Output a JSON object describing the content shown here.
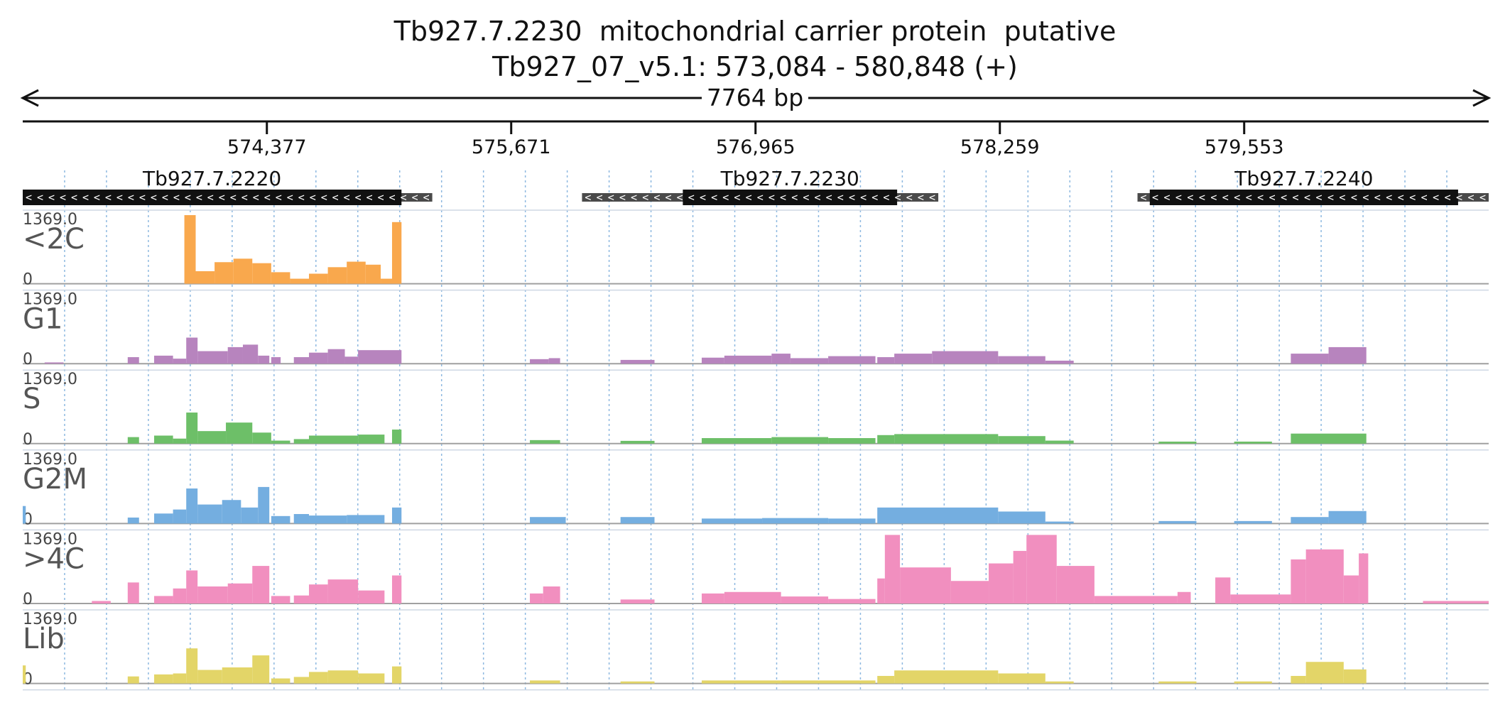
{
  "title": "Tb927.7.2230  mitochondrial carrier protein  putative",
  "subtitle": "Tb927_07_v5.1: 573,084 - 580,848 (+)",
  "span_label": "7764 bp",
  "chart_data": {
    "type": "area",
    "x_range": [
      573084,
      580848
    ],
    "ticks": [
      {
        "pos": 574377,
        "label": "574,377"
      },
      {
        "pos": 575671,
        "label": "575,671"
      },
      {
        "pos": 576965,
        "label": "576,965"
      },
      {
        "pos": 578259,
        "label": "578,259"
      },
      {
        "pos": 579553,
        "label": "579,553"
      }
    ],
    "genes": [
      {
        "name": "Tb927.7.2220",
        "utr_start": 573084,
        "cds_start": 573084,
        "cds_end": 575090,
        "utr_end": 575253,
        "strand": "-"
      },
      {
        "name": "Tb927.7.2230",
        "utr_start": 576046,
        "cds_start": 576580,
        "cds_end": 577715,
        "utr_end": 577933,
        "strand": "-"
      },
      {
        "name": "Tb927.7.2240",
        "utr_start": 578988,
        "cds_start": 579053,
        "cds_end": 580686,
        "utr_end": 580848,
        "strand": "-"
      }
    ],
    "ylim": [
      0,
      1369.0
    ],
    "ymax_label": "1369.0",
    "ymin_label": "0",
    "series": [
      {
        "name": "<2C",
        "color": "#f9a84d",
        "regions": [
          {
            "start": 573940,
            "end": 574000,
            "v": 1369
          },
          {
            "start": 574000,
            "end": 574100,
            "v": 250
          },
          {
            "start": 574100,
            "end": 574200,
            "v": 430
          },
          {
            "start": 574200,
            "end": 574300,
            "v": 500
          },
          {
            "start": 574300,
            "end": 574400,
            "v": 410
          },
          {
            "start": 574400,
            "end": 574500,
            "v": 230
          },
          {
            "start": 574500,
            "end": 574600,
            "v": 100
          },
          {
            "start": 574600,
            "end": 574700,
            "v": 200
          },
          {
            "start": 574700,
            "end": 574800,
            "v": 330
          },
          {
            "start": 574800,
            "end": 574900,
            "v": 440
          },
          {
            "start": 574900,
            "end": 574980,
            "v": 380
          },
          {
            "start": 574980,
            "end": 575040,
            "v": 100
          },
          {
            "start": 575040,
            "end": 575090,
            "v": 1230
          }
        ]
      },
      {
        "name": "G1",
        "color": "#b784be",
        "regions": [
          {
            "start": 573200,
            "end": 573300,
            "v": 25
          },
          {
            "start": 573640,
            "end": 573700,
            "v": 130
          },
          {
            "start": 573780,
            "end": 573880,
            "v": 160
          },
          {
            "start": 573880,
            "end": 573950,
            "v": 100
          },
          {
            "start": 573950,
            "end": 574010,
            "v": 520
          },
          {
            "start": 574010,
            "end": 574170,
            "v": 250
          },
          {
            "start": 574170,
            "end": 574250,
            "v": 330
          },
          {
            "start": 574250,
            "end": 574330,
            "v": 380
          },
          {
            "start": 574330,
            "end": 574390,
            "v": 160
          },
          {
            "start": 574400,
            "end": 574450,
            "v": 130
          },
          {
            "start": 574520,
            "end": 574600,
            "v": 130
          },
          {
            "start": 574600,
            "end": 574700,
            "v": 220
          },
          {
            "start": 574700,
            "end": 574790,
            "v": 290
          },
          {
            "start": 574790,
            "end": 574860,
            "v": 140
          },
          {
            "start": 574860,
            "end": 575090,
            "v": 270
          },
          {
            "start": 575770,
            "end": 575870,
            "v": 90
          },
          {
            "start": 575870,
            "end": 575930,
            "v": 110
          },
          {
            "start": 576250,
            "end": 576430,
            "v": 75
          },
          {
            "start": 576680,
            "end": 576800,
            "v": 120
          },
          {
            "start": 576800,
            "end": 577050,
            "v": 160
          },
          {
            "start": 577050,
            "end": 577150,
            "v": 200
          },
          {
            "start": 577150,
            "end": 577350,
            "v": 110
          },
          {
            "start": 577350,
            "end": 577600,
            "v": 150
          },
          {
            "start": 577610,
            "end": 577700,
            "v": 130
          },
          {
            "start": 577700,
            "end": 577900,
            "v": 200
          },
          {
            "start": 577900,
            "end": 578250,
            "v": 250
          },
          {
            "start": 578250,
            "end": 578500,
            "v": 150
          },
          {
            "start": 578500,
            "end": 578650,
            "v": 60
          },
          {
            "start": 579800,
            "end": 580000,
            "v": 200
          },
          {
            "start": 580000,
            "end": 580200,
            "v": 330
          }
        ]
      },
      {
        "name": "S",
        "color": "#6dbf68",
        "regions": [
          {
            "start": 573640,
            "end": 573700,
            "v": 130
          },
          {
            "start": 573780,
            "end": 573880,
            "v": 160
          },
          {
            "start": 573880,
            "end": 573950,
            "v": 100
          },
          {
            "start": 573950,
            "end": 574010,
            "v": 620
          },
          {
            "start": 574010,
            "end": 574160,
            "v": 250
          },
          {
            "start": 574160,
            "end": 574300,
            "v": 420
          },
          {
            "start": 574300,
            "end": 574400,
            "v": 220
          },
          {
            "start": 574400,
            "end": 574500,
            "v": 60
          },
          {
            "start": 574520,
            "end": 574600,
            "v": 90
          },
          {
            "start": 574600,
            "end": 574860,
            "v": 160
          },
          {
            "start": 574860,
            "end": 575000,
            "v": 180
          },
          {
            "start": 575040,
            "end": 575090,
            "v": 280
          },
          {
            "start": 575770,
            "end": 575930,
            "v": 70
          },
          {
            "start": 576250,
            "end": 576430,
            "v": 55
          },
          {
            "start": 576680,
            "end": 577050,
            "v": 110
          },
          {
            "start": 577050,
            "end": 577350,
            "v": 130
          },
          {
            "start": 577350,
            "end": 577600,
            "v": 110
          },
          {
            "start": 577610,
            "end": 577700,
            "v": 170
          },
          {
            "start": 577700,
            "end": 578250,
            "v": 190
          },
          {
            "start": 578250,
            "end": 578500,
            "v": 150
          },
          {
            "start": 578500,
            "end": 578650,
            "v": 60
          },
          {
            "start": 579100,
            "end": 579300,
            "v": 40
          },
          {
            "start": 579500,
            "end": 579700,
            "v": 40
          },
          {
            "start": 579800,
            "end": 580200,
            "v": 200
          }
        ]
      },
      {
        "name": "G2M",
        "color": "#74aee0",
        "regions": [
          {
            "start": 573084,
            "end": 573100,
            "v": 350
          },
          {
            "start": 573640,
            "end": 573700,
            "v": 120
          },
          {
            "start": 573780,
            "end": 573880,
            "v": 200
          },
          {
            "start": 573880,
            "end": 573950,
            "v": 280
          },
          {
            "start": 573950,
            "end": 574010,
            "v": 700
          },
          {
            "start": 574010,
            "end": 574140,
            "v": 380
          },
          {
            "start": 574140,
            "end": 574240,
            "v": 470
          },
          {
            "start": 574240,
            "end": 574330,
            "v": 320
          },
          {
            "start": 574330,
            "end": 574390,
            "v": 730
          },
          {
            "start": 574400,
            "end": 574500,
            "v": 150
          },
          {
            "start": 574520,
            "end": 574600,
            "v": 190
          },
          {
            "start": 574600,
            "end": 574800,
            "v": 160
          },
          {
            "start": 574800,
            "end": 575000,
            "v": 170
          },
          {
            "start": 575040,
            "end": 575090,
            "v": 320
          },
          {
            "start": 575770,
            "end": 575960,
            "v": 130
          },
          {
            "start": 576250,
            "end": 576430,
            "v": 130
          },
          {
            "start": 576680,
            "end": 577000,
            "v": 100
          },
          {
            "start": 577000,
            "end": 577350,
            "v": 110
          },
          {
            "start": 577350,
            "end": 577600,
            "v": 100
          },
          {
            "start": 577610,
            "end": 578250,
            "v": 320
          },
          {
            "start": 578250,
            "end": 578500,
            "v": 240
          },
          {
            "start": 578500,
            "end": 578650,
            "v": 40
          },
          {
            "start": 579100,
            "end": 579300,
            "v": 50
          },
          {
            "start": 579500,
            "end": 579700,
            "v": 50
          },
          {
            "start": 579800,
            "end": 580000,
            "v": 130
          },
          {
            "start": 580000,
            "end": 580200,
            "v": 250
          }
        ]
      },
      {
        "name": ">4C",
        "color": "#f18fbf",
        "regions": [
          {
            "start": 573450,
            "end": 573550,
            "v": 50
          },
          {
            "start": 573640,
            "end": 573700,
            "v": 420
          },
          {
            "start": 573780,
            "end": 573880,
            "v": 150
          },
          {
            "start": 573880,
            "end": 573950,
            "v": 300
          },
          {
            "start": 573950,
            "end": 574010,
            "v": 660
          },
          {
            "start": 574010,
            "end": 574170,
            "v": 340
          },
          {
            "start": 574170,
            "end": 574300,
            "v": 400
          },
          {
            "start": 574300,
            "end": 574390,
            "v": 750
          },
          {
            "start": 574400,
            "end": 574500,
            "v": 150
          },
          {
            "start": 574520,
            "end": 574600,
            "v": 160
          },
          {
            "start": 574600,
            "end": 574700,
            "v": 380
          },
          {
            "start": 574700,
            "end": 574860,
            "v": 480
          },
          {
            "start": 574860,
            "end": 575000,
            "v": 260
          },
          {
            "start": 575040,
            "end": 575090,
            "v": 560
          },
          {
            "start": 575770,
            "end": 575840,
            "v": 200
          },
          {
            "start": 575840,
            "end": 575930,
            "v": 340
          },
          {
            "start": 576250,
            "end": 576430,
            "v": 80
          },
          {
            "start": 576680,
            "end": 576800,
            "v": 200
          },
          {
            "start": 576800,
            "end": 577100,
            "v": 230
          },
          {
            "start": 577100,
            "end": 577350,
            "v": 140
          },
          {
            "start": 577350,
            "end": 577600,
            "v": 90
          },
          {
            "start": 577610,
            "end": 577650,
            "v": 500
          },
          {
            "start": 577650,
            "end": 577730,
            "v": 1369
          },
          {
            "start": 577730,
            "end": 578000,
            "v": 720
          },
          {
            "start": 578000,
            "end": 578200,
            "v": 450
          },
          {
            "start": 578200,
            "end": 578330,
            "v": 800
          },
          {
            "start": 578330,
            "end": 578400,
            "v": 1050
          },
          {
            "start": 578400,
            "end": 578560,
            "v": 1369
          },
          {
            "start": 578560,
            "end": 578760,
            "v": 750
          },
          {
            "start": 578760,
            "end": 579200,
            "v": 150
          },
          {
            "start": 579200,
            "end": 579270,
            "v": 230
          },
          {
            "start": 579400,
            "end": 579480,
            "v": 520
          },
          {
            "start": 579480,
            "end": 579800,
            "v": 180
          },
          {
            "start": 579800,
            "end": 579880,
            "v": 880
          },
          {
            "start": 579880,
            "end": 580080,
            "v": 1080
          },
          {
            "start": 580080,
            "end": 580160,
            "v": 560
          },
          {
            "start": 580160,
            "end": 580210,
            "v": 1000
          },
          {
            "start": 580500,
            "end": 580848,
            "v": 50
          }
        ]
      },
      {
        "name": "Lib",
        "color": "#e3d568",
        "regions": [
          {
            "start": 573084,
            "end": 573100,
            "v": 360
          },
          {
            "start": 573640,
            "end": 573700,
            "v": 140
          },
          {
            "start": 573780,
            "end": 573880,
            "v": 180
          },
          {
            "start": 573880,
            "end": 573950,
            "v": 200
          },
          {
            "start": 573950,
            "end": 574010,
            "v": 700
          },
          {
            "start": 574010,
            "end": 574140,
            "v": 270
          },
          {
            "start": 574140,
            "end": 574300,
            "v": 320
          },
          {
            "start": 574300,
            "end": 574390,
            "v": 560
          },
          {
            "start": 574400,
            "end": 574500,
            "v": 100
          },
          {
            "start": 574520,
            "end": 574600,
            "v": 130
          },
          {
            "start": 574600,
            "end": 574700,
            "v": 230
          },
          {
            "start": 574700,
            "end": 574860,
            "v": 260
          },
          {
            "start": 574860,
            "end": 575000,
            "v": 200
          },
          {
            "start": 575040,
            "end": 575090,
            "v": 340
          },
          {
            "start": 575770,
            "end": 575930,
            "v": 60
          },
          {
            "start": 576250,
            "end": 576430,
            "v": 40
          },
          {
            "start": 576680,
            "end": 577100,
            "v": 60
          },
          {
            "start": 577100,
            "end": 577600,
            "v": 60
          },
          {
            "start": 577610,
            "end": 577700,
            "v": 150
          },
          {
            "start": 577700,
            "end": 578250,
            "v": 260
          },
          {
            "start": 578250,
            "end": 578500,
            "v": 200
          },
          {
            "start": 578500,
            "end": 578650,
            "v": 40
          },
          {
            "start": 579100,
            "end": 579300,
            "v": 40
          },
          {
            "start": 579500,
            "end": 579700,
            "v": 40
          },
          {
            "start": 579800,
            "end": 579880,
            "v": 150
          },
          {
            "start": 579880,
            "end": 580080,
            "v": 430
          },
          {
            "start": 580080,
            "end": 580200,
            "v": 280
          }
        ]
      }
    ]
  }
}
